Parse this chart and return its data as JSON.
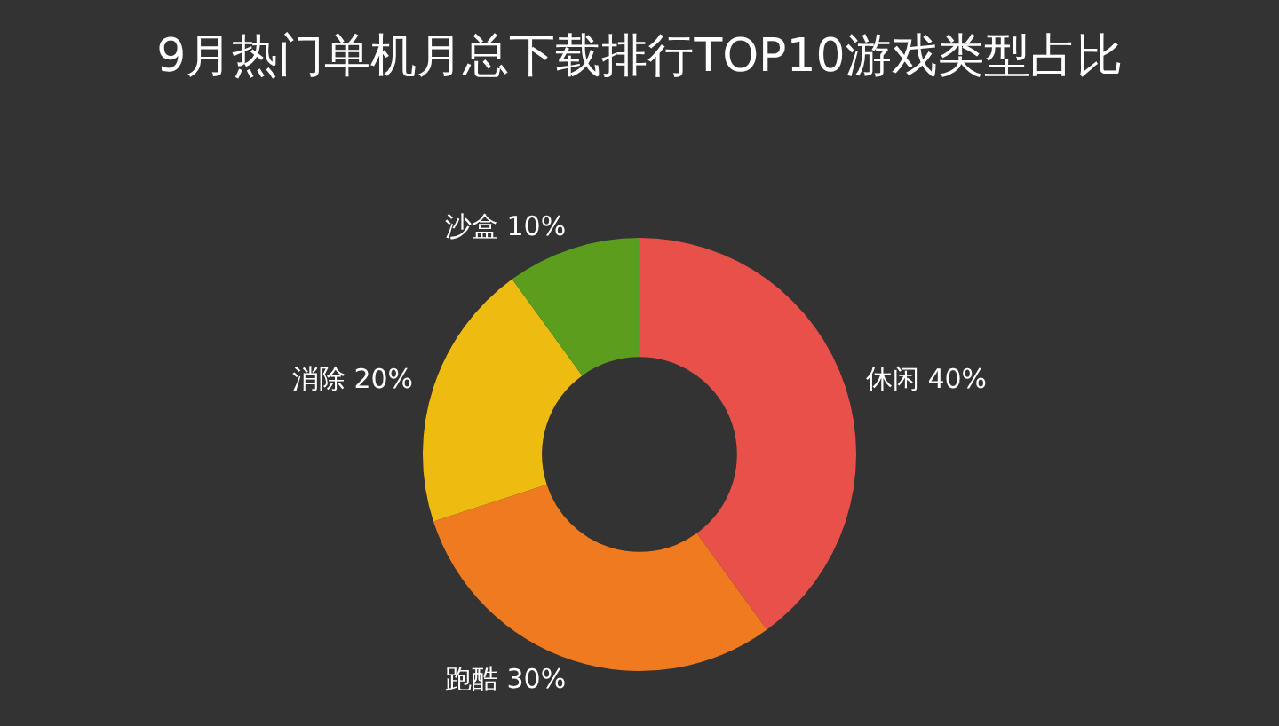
{
  "chart_data": {
    "type": "donut",
    "title": "9月热门单机月总下载排行TOP10游戏类型占比",
    "categories": [
      "休闲",
      "跑酷",
      "消除",
      "沙盒"
    ],
    "values": [
      40,
      30,
      20,
      10
    ],
    "value_labels": [
      "40%",
      "30%",
      "20%",
      "10%"
    ],
    "colors": [
      "#e8504a",
      "#ef7a1f",
      "#eebb11",
      "#5b9e1d"
    ],
    "legend": false
  }
}
